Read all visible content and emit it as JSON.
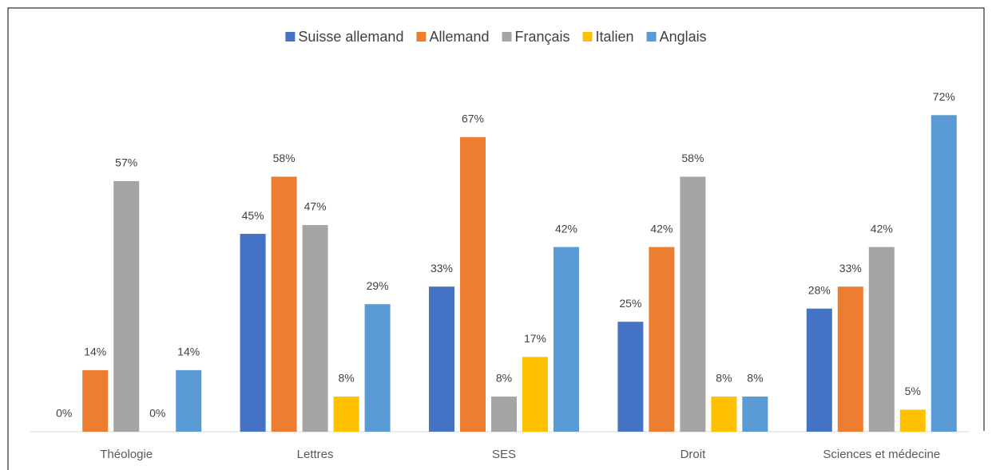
{
  "chart_data": {
    "type": "bar",
    "categories": [
      "Théologie",
      "Lettres",
      "SES",
      "Droit",
      "Sciences et médecine"
    ],
    "series": [
      {
        "name": "Suisse allemand",
        "color": "#4472c4",
        "values": [
          0,
          45,
          33,
          25,
          28
        ],
        "value_labels": [
          "0%",
          "45%",
          "33%",
          "25%",
          "28%"
        ]
      },
      {
        "name": "Allemand",
        "color": "#ed7d31",
        "values": [
          14,
          58,
          67,
          42,
          33
        ],
        "value_labels": [
          "14%",
          "58%",
          "67%",
          "42%",
          "33%"
        ]
      },
      {
        "name": "Français",
        "color": "#a5a5a5",
        "values": [
          57,
          47,
          8,
          58,
          42
        ],
        "value_labels": [
          "57%",
          "47%",
          "8%",
          "58%",
          "42%"
        ]
      },
      {
        "name": "Italien",
        "color": "#ffc000",
        "values": [
          0,
          8,
          17,
          8,
          5
        ],
        "value_labels": [
          "0%",
          "8%",
          "17%",
          "8%",
          "5%"
        ]
      },
      {
        "name": "Anglais",
        "color": "#5b9bd5",
        "values": [
          14,
          29,
          42,
          8,
          72
        ],
        "value_labels": [
          "14%",
          "29%",
          "42%",
          "8%",
          "72%"
        ]
      }
    ],
    "legend": "top"
  }
}
